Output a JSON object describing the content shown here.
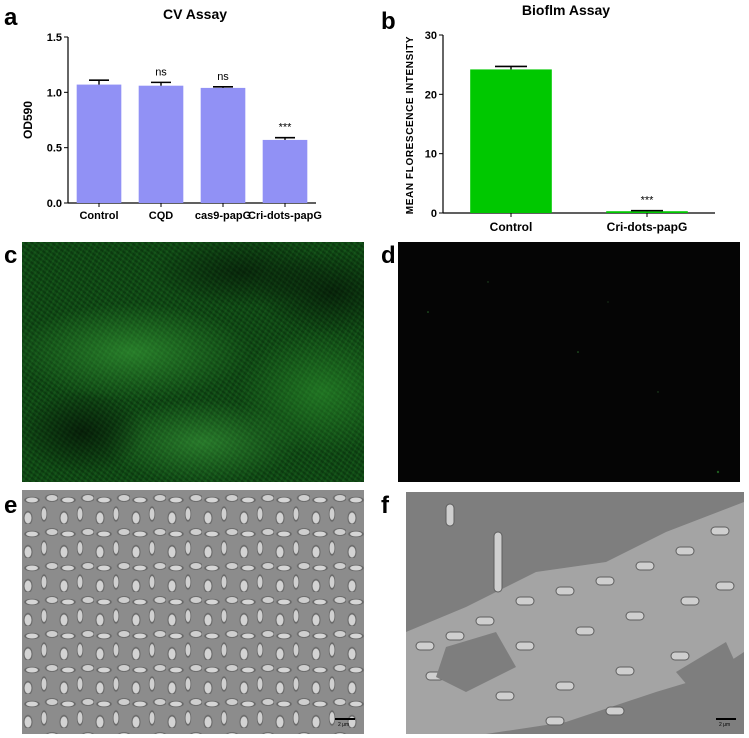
{
  "panels": {
    "a": "a",
    "b": "b",
    "c": "c",
    "d": "d",
    "e": "e",
    "f": "f"
  },
  "colors": {
    "cv_bar": "#9191f5",
    "biofilm_bar": "#00c800"
  },
  "scale_bar": {
    "e": "2 μm",
    "f": "2 μm"
  },
  "chart_data": [
    {
      "type": "bar",
      "title": "CV Assay",
      "ylabel": "OD590",
      "xlabel": "",
      "categories": [
        "Control",
        "CQD",
        "cas9-papG",
        "Cri-dots-papG"
      ],
      "values": [
        1.07,
        1.06,
        1.04,
        0.57
      ],
      "errors": [
        0.04,
        0.03,
        0.01,
        0.02
      ],
      "annotations": [
        "",
        "ns",
        "ns",
        "***"
      ],
      "ylim": [
        0,
        1.5
      ],
      "yticks": [
        0.0,
        0.5,
        1.0,
        1.5
      ],
      "ytick_labels": [
        "0.0",
        "0.5",
        "1.0",
        "1.5"
      ],
      "grid": false
    },
    {
      "type": "bar",
      "title": "Bioflm Assay",
      "ylabel": "MEAN FLORESCENCE INTENSITY",
      "xlabel": "",
      "categories": [
        "Control",
        "Cri-dots-papG"
      ],
      "values": [
        24.2,
        0.3
      ],
      "errors": [
        0.5,
        0.1
      ],
      "annotations": [
        "",
        "***"
      ],
      "ylim": [
        0,
        30
      ],
      "yticks": [
        0,
        10,
        20,
        30
      ],
      "ytick_labels": [
        "0",
        "10",
        "20",
        "30"
      ],
      "grid": false
    }
  ]
}
